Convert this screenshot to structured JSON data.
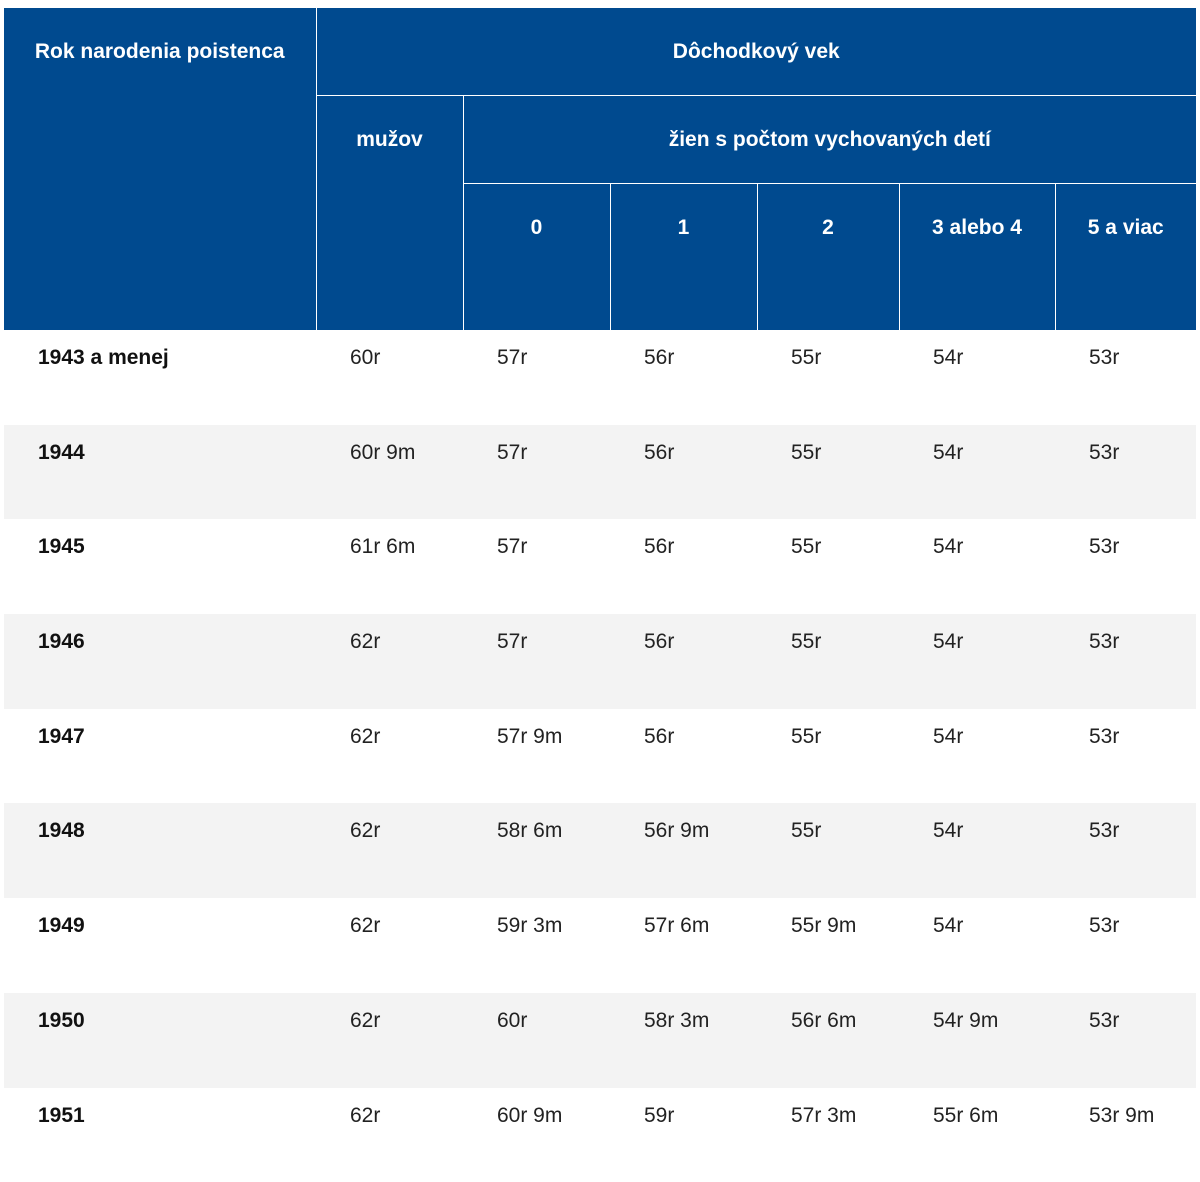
{
  "header": {
    "year_col": "Rok narodenia poistenca",
    "group": "Dôchodkový vek",
    "men": "mužov",
    "women": "žien s počtom vychovaných detí",
    "child_counts": [
      "0",
      "1",
      "2",
      "3 alebo 4",
      "5 a viac"
    ]
  },
  "rows": [
    {
      "year": "1943 a menej",
      "men": "60r",
      "w0": "57r",
      "w1": "56r",
      "w2": "55r",
      "w3": "54r",
      "w5": "53r"
    },
    {
      "year": "1944",
      "men": "60r 9m",
      "w0": "57r",
      "w1": "56r",
      "w2": "55r",
      "w3": "54r",
      "w5": "53r"
    },
    {
      "year": "1945",
      "men": "61r 6m",
      "w0": "57r",
      "w1": "56r",
      "w2": "55r",
      "w3": "54r",
      "w5": "53r"
    },
    {
      "year": "1946",
      "men": "62r",
      "w0": "57r",
      "w1": "56r",
      "w2": "55r",
      "w3": "54r",
      "w5": "53r"
    },
    {
      "year": "1947",
      "men": "62r",
      "w0": "57r 9m",
      "w1": "56r",
      "w2": "55r",
      "w3": "54r",
      "w5": "53r"
    },
    {
      "year": "1948",
      "men": "62r",
      "w0": "58r 6m",
      "w1": "56r 9m",
      "w2": "55r",
      "w3": "54r",
      "w5": "53r"
    },
    {
      "year": "1949",
      "men": "62r",
      "w0": "59r 3m",
      "w1": "57r 6m",
      "w2": "55r 9m",
      "w3": "54r",
      "w5": "53r"
    },
    {
      "year": "1950",
      "men": "62r",
      "w0": "60r",
      "w1": "58r 3m",
      "w2": "56r 6m",
      "w3": "54r 9m",
      "w5": "53r"
    },
    {
      "year": "1951",
      "men": "62r",
      "w0": "60r 9m",
      "w1": "59r",
      "w2": "57r 3m",
      "w3": "55r 6m",
      "w5": "53r 9m"
    }
  ],
  "colors": {
    "header_bg": "#004a8f",
    "row_alt_bg": "#f3f3f3"
  }
}
